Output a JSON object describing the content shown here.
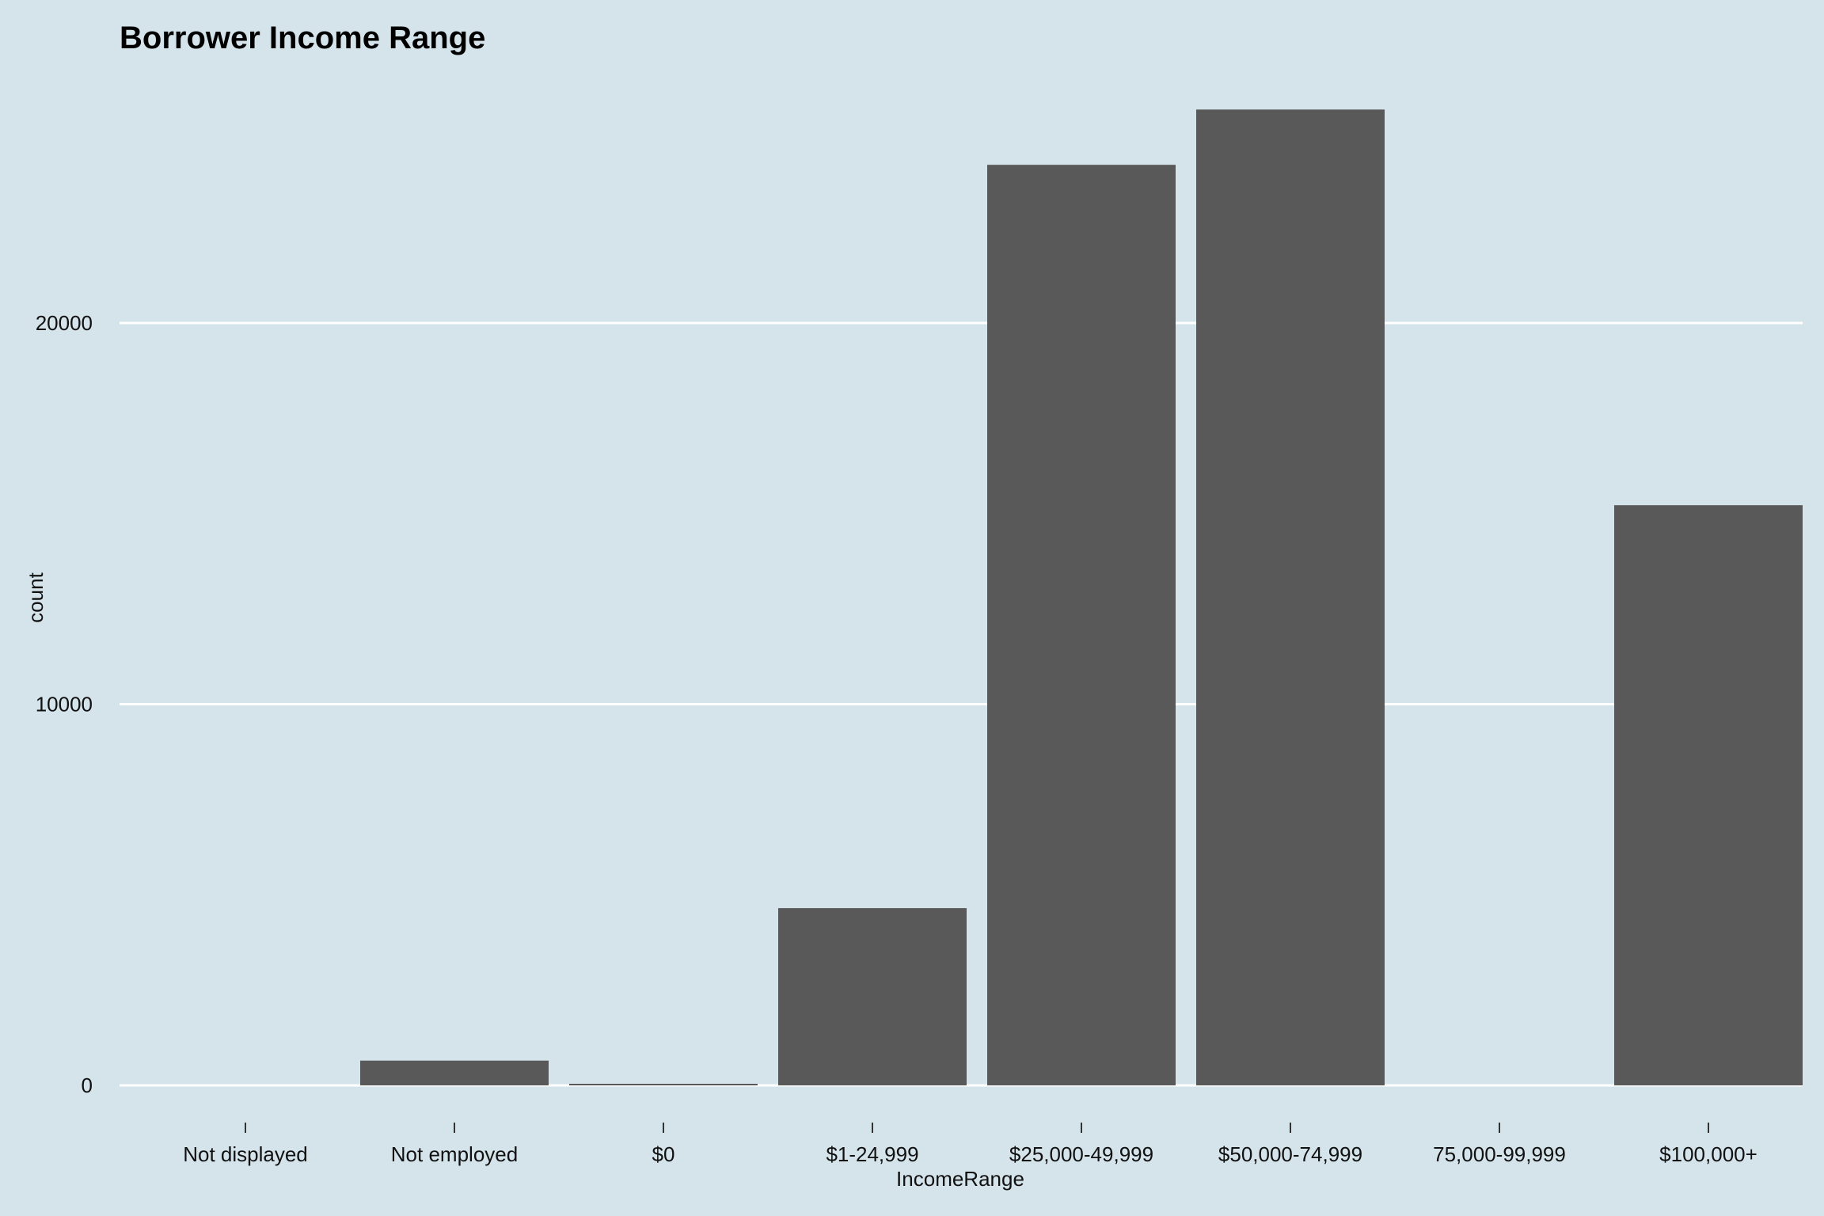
{
  "chart_data": {
    "type": "bar",
    "title": "Borrower Income Range",
    "xlabel": "IncomeRange",
    "ylabel": "count",
    "categories": [
      "Not displayed",
      "Not employed",
      "$0",
      "$1-24,999",
      "$25,000-49,999",
      "$50,000-74,999",
      "75,000-99,999",
      "$100,000+"
    ],
    "values": [
      0,
      650,
      40,
      4650,
      24150,
      25600,
      0,
      15220
    ],
    "yticks": [
      0,
      10000,
      20000
    ],
    "ylim": [
      0,
      27500
    ],
    "grid": "horizontal major lines",
    "colors": {
      "background": "#d5e4eb",
      "bar": "#595959",
      "grid": "#ffffff"
    }
  }
}
